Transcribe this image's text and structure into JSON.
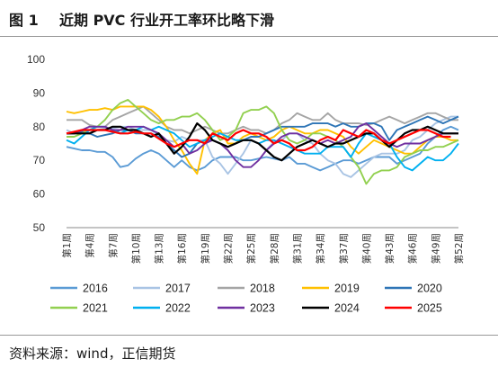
{
  "header": {
    "figure_no": "图 1",
    "title": "近期 PVC 行业开工率环比略下滑"
  },
  "footer": {
    "source": "资料来源：wind，正信期货"
  },
  "chart_data": {
    "type": "line",
    "title": "近期 PVC 行业开工率环比略下滑",
    "xlabel": "",
    "ylabel": "",
    "ylim": [
      50,
      100
    ],
    "yticks": [
      50,
      60,
      70,
      80,
      90,
      100
    ],
    "grid": false,
    "legend_position": "bottom",
    "x_tick_labels": [
      "第1周",
      "第4周",
      "第7周",
      "第10周",
      "第13周",
      "第16周",
      "第19周",
      "第22周",
      "第25周",
      "第28周",
      "第31周",
      "第34周",
      "第37周",
      "第40周",
      "第43周",
      "第46周",
      "第49周",
      "第52周"
    ],
    "weeks": [
      1,
      2,
      3,
      4,
      5,
      6,
      7,
      8,
      9,
      10,
      11,
      12,
      13,
      14,
      15,
      16,
      17,
      18,
      19,
      20,
      21,
      22,
      23,
      24,
      25,
      26,
      27,
      28,
      29,
      30,
      31,
      32,
      33,
      34,
      35,
      36,
      37,
      38,
      39,
      40,
      41,
      42,
      43,
      44,
      45,
      46,
      47,
      48,
      49,
      50,
      51,
      52
    ],
    "series": [
      {
        "name": "2016",
        "color": "#5b9bd5",
        "values": [
          74,
          73.5,
          73,
          73,
          72.5,
          72.5,
          71,
          68,
          68.5,
          70.5,
          72,
          73,
          72,
          70,
          68,
          70,
          68,
          67,
          68,
          70,
          71,
          71,
          71,
          70,
          70,
          70.5,
          71,
          70.5,
          70,
          71,
          69,
          69,
          68,
          67,
          68,
          69,
          70,
          70,
          69,
          70,
          71,
          71,
          71,
          69,
          70,
          71,
          72,
          75,
          77,
          79,
          80,
          79
        ]
      },
      {
        "name": "2017",
        "color": "#a9c4e4",
        "values": [
          79,
          78,
          78.5,
          79,
          79,
          79.5,
          79.5,
          80,
          80,
          79,
          79,
          79,
          77.5,
          76,
          75.5,
          77,
          76,
          76,
          76,
          71,
          69,
          66,
          69,
          72,
          76,
          75,
          73,
          75.5,
          76,
          78,
          78,
          76,
          75,
          72,
          70,
          69,
          66,
          65,
          67,
          69,
          71,
          72,
          72,
          72,
          73,
          76,
          77,
          79,
          81,
          82,
          83,
          83
        ]
      },
      {
        "name": "2018",
        "color": "#a5a5a5",
        "values": [
          82,
          82,
          82,
          80.5,
          80,
          80,
          82,
          83,
          84,
          85,
          86,
          84,
          82,
          80,
          79,
          79,
          78,
          79,
          80,
          79,
          78,
          78,
          79,
          80,
          79,
          79,
          78,
          79,
          81,
          82,
          84,
          83,
          82,
          82,
          84,
          82,
          81,
          81,
          81,
          80.5,
          81,
          82,
          83,
          82,
          81,
          82,
          83,
          84,
          84,
          83,
          82,
          82
        ]
      },
      {
        "name": "2019",
        "color": "#ffc000",
        "values": [
          84.5,
          84,
          84.5,
          85,
          85,
          85.5,
          85,
          86,
          86,
          86,
          86,
          85,
          83,
          80,
          76,
          73,
          69,
          66,
          76,
          78,
          79,
          75,
          75,
          77,
          78,
          77,
          76,
          77,
          79,
          80,
          79,
          78,
          78,
          79,
          79,
          78,
          77,
          74,
          72,
          74,
          76,
          75,
          74,
          73,
          72,
          72,
          74,
          76,
          77,
          77,
          76,
          76
        ]
      },
      {
        "name": "2020",
        "color": "#2e75b6",
        "values": [
          78,
          78,
          78.5,
          78,
          77,
          77.5,
          78,
          79,
          79,
          78,
          78,
          78,
          77,
          75,
          73,
          71,
          72,
          75,
          76,
          76,
          75,
          74,
          75,
          76,
          77,
          77,
          78,
          79,
          80,
          80,
          80,
          80,
          81,
          81,
          81,
          80,
          81,
          80,
          80,
          81,
          81,
          80,
          76,
          79,
          80,
          81,
          82,
          83,
          82,
          81,
          82,
          83
        ]
      },
      {
        "name": "2021",
        "color": "#92d050",
        "values": [
          77,
          77,
          78,
          79,
          80,
          82,
          85,
          87,
          88,
          86,
          84,
          82,
          81,
          82,
          82,
          83,
          83,
          84,
          82,
          79,
          76,
          77,
          79,
          84,
          85,
          85,
          86,
          84,
          79,
          76,
          75,
          76,
          78,
          78,
          77,
          76,
          74,
          71,
          68,
          63,
          66,
          67,
          67,
          68,
          71,
          72,
          73,
          73,
          74,
          74,
          75,
          76
        ]
      },
      {
        "name": "2022",
        "color": "#00b0f0",
        "values": [
          76,
          75,
          77,
          79,
          80,
          80,
          79,
          78,
          79,
          79,
          80,
          79,
          80,
          79,
          78,
          76,
          74,
          75,
          76,
          77,
          78,
          77,
          76,
          76,
          76,
          75,
          76,
          76,
          75,
          74,
          73,
          72,
          72,
          72,
          74,
          74,
          74,
          71,
          75,
          78,
          77,
          76,
          75,
          71,
          68,
          67,
          69,
          71,
          70,
          70,
          72,
          75
        ]
      },
      {
        "name": "2023",
        "color": "#7030a0",
        "values": [
          78,
          78,
          79,
          80,
          80,
          80,
          79,
          79,
          80,
          80,
          80,
          79,
          78,
          76,
          74,
          75,
          72,
          73,
          75,
          76,
          75,
          73,
          70,
          68,
          68,
          70,
          73,
          75,
          77,
          78,
          78,
          77,
          76,
          75,
          76,
          75,
          76,
          77,
          80,
          81,
          79,
          77,
          75,
          74,
          75,
          75,
          75,
          76,
          77,
          78,
          78,
          78
        ]
      },
      {
        "name": "2024",
        "color": "#000000",
        "values": [
          78,
          78,
          78,
          78,
          79,
          79,
          80,
          80,
          79,
          79,
          78,
          77,
          78,
          75,
          72,
          74,
          77,
          81,
          79,
          76,
          75,
          74,
          75,
          76,
          76,
          75,
          73,
          71,
          70,
          72,
          74,
          75,
          76,
          75,
          74,
          75,
          75,
          76,
          77,
          78,
          78,
          76,
          74,
          76,
          78,
          79,
          79,
          80,
          79,
          78,
          78,
          78
        ]
      },
      {
        "name": "2025",
        "color": "#ff0000",
        "values": [
          78,
          78.5,
          79,
          79,
          79,
          79,
          78.5,
          78,
          78,
          78.5,
          78,
          78,
          76.5,
          75,
          74,
          75,
          76,
          76,
          75,
          78,
          77,
          76,
          78,
          79,
          78,
          78,
          77,
          75,
          76,
          75,
          73,
          73,
          74,
          76,
          77,
          76,
          79,
          78,
          77,
          79,
          78,
          76,
          75,
          76,
          77,
          78,
          79,
          79,
          78,
          77,
          77,
          null
        ]
      }
    ]
  }
}
